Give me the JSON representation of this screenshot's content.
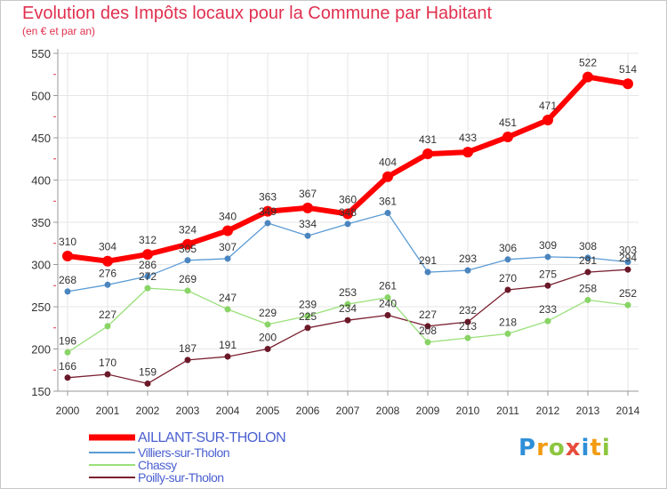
{
  "title": "Evolution des Impôts locaux pour la Commune par Habitant",
  "subtitle": "(en € et par an)",
  "logo": {
    "p": "P",
    "r": "r",
    "o": "o",
    "x": "x",
    "i": "i",
    "t": "t",
    "i2": "i"
  },
  "colors": {
    "title": "#e0304f",
    "axis": "#999999",
    "grid": "#e6e6e6"
  },
  "chart_data": {
    "type": "line",
    "title": "Evolution des Impôts locaux pour la Commune par Habitant",
    "subtitle": "(en € et par an)",
    "x": [
      "2000",
      "2001",
      "2002",
      "2003",
      "2004",
      "2005",
      "2006",
      "2007",
      "2008",
      "2009",
      "2010",
      "2011",
      "2012",
      "2013",
      "2014"
    ],
    "ylim": [
      150,
      550
    ],
    "yticks": [
      150,
      200,
      250,
      300,
      350,
      400,
      450,
      500,
      550
    ],
    "grid": true,
    "legend_position": "bottom-left",
    "series": [
      {
        "name": "AILLANT-SUR-THOLON",
        "color": "#ff0000",
        "marker": "#ff0000",
        "width": 6,
        "values": [
          310,
          304,
          312,
          324,
          340,
          363,
          367,
          360,
          404,
          431,
          433,
          451,
          471,
          522,
          514
        ]
      },
      {
        "name": "Villiers-sur-Tholon",
        "color": "#5b9bd5",
        "marker": "#4a85bf",
        "width": 1.3,
        "values": [
          268,
          276,
          286,
          305,
          307,
          349,
          334,
          348,
          361,
          291,
          293,
          306,
          309,
          308,
          303
        ]
      },
      {
        "name": "Chassy",
        "color": "#99e07a",
        "marker": "#88d466",
        "width": 1.3,
        "values": [
          196,
          227,
          272,
          269,
          247,
          229,
          239,
          253,
          261,
          208,
          213,
          218,
          233,
          258,
          252
        ]
      },
      {
        "name": "Poilly-sur-Tholon",
        "color": "#7a2030",
        "marker": "#6a1828",
        "width": 1.3,
        "values": [
          166,
          170,
          159,
          187,
          191,
          200,
          225,
          234,
          240,
          227,
          232,
          270,
          275,
          291,
          294
        ]
      }
    ]
  }
}
